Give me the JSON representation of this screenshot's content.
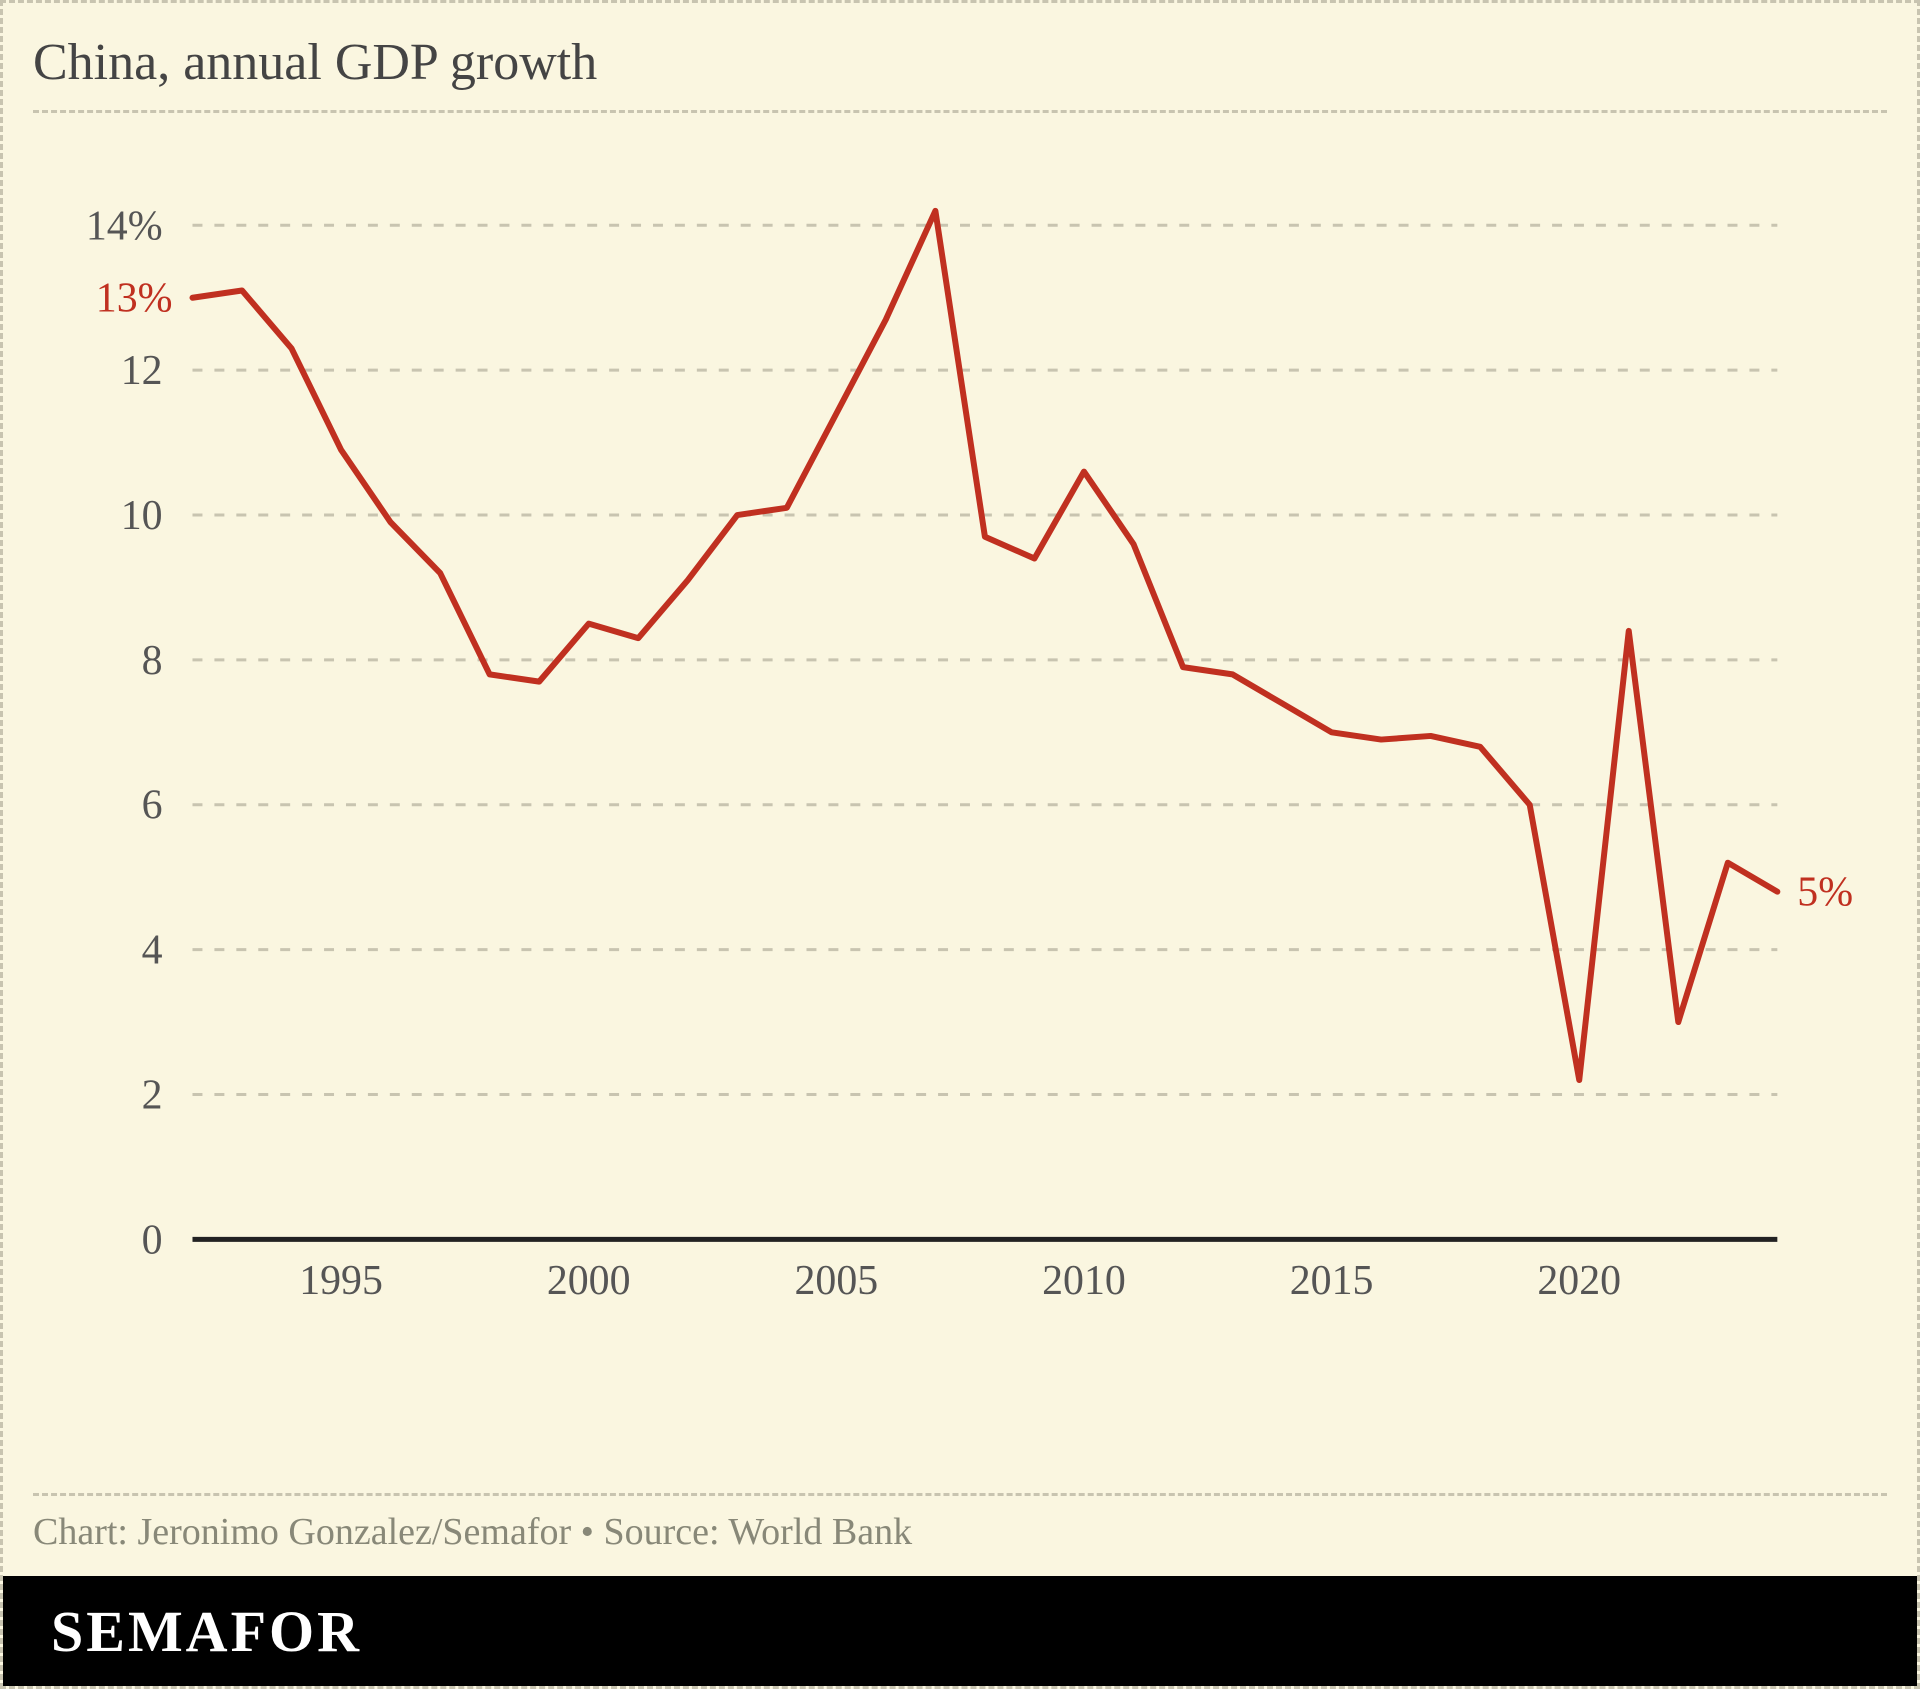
{
  "title": "China, annual GDP growth",
  "credit": "Chart: Jeronimo Gonzalez/Semafor • Source: World Bank",
  "brand": "SEMAFOR",
  "chart": {
    "type": "line",
    "background_color": "#faf6e0",
    "border_color": "#c8c4b0",
    "grid_color": "#c8c4b0",
    "axis_color": "#222222",
    "line_color": "#c03020",
    "line_width": 6,
    "tick_font_size": 42,
    "tick_color": "#555555",
    "callout_color": "#c03020",
    "callout_font_size": 42,
    "x_ticks": [
      1995,
      2000,
      2005,
      2010,
      2015,
      2020
    ],
    "y_ticks": [
      0,
      2,
      4,
      6,
      8,
      10,
      12,
      14
    ],
    "y_tick_labels": [
      "0",
      "2",
      "4",
      "6",
      "8",
      "10",
      "12",
      "14%"
    ],
    "xlim": [
      1992,
      2024
    ],
    "ylim": [
      0,
      15
    ],
    "start_label": "13%",
    "end_label": "5%",
    "series": [
      {
        "x": 1992,
        "y": 13.0
      },
      {
        "x": 1993,
        "y": 13.1
      },
      {
        "x": 1994,
        "y": 12.3
      },
      {
        "x": 1995,
        "y": 10.9
      },
      {
        "x": 1996,
        "y": 9.9
      },
      {
        "x": 1997,
        "y": 9.2
      },
      {
        "x": 1998,
        "y": 7.8
      },
      {
        "x": 1999,
        "y": 7.7
      },
      {
        "x": 2000,
        "y": 8.5
      },
      {
        "x": 2001,
        "y": 8.3
      },
      {
        "x": 2002,
        "y": 9.1
      },
      {
        "x": 2003,
        "y": 10.0
      },
      {
        "x": 2004,
        "y": 10.1
      },
      {
        "x": 2005,
        "y": 11.4
      },
      {
        "x": 2006,
        "y": 12.7
      },
      {
        "x": 2007,
        "y": 14.2
      },
      {
        "x": 2008,
        "y": 9.7
      },
      {
        "x": 2009,
        "y": 9.4
      },
      {
        "x": 2010,
        "y": 10.6
      },
      {
        "x": 2011,
        "y": 9.6
      },
      {
        "x": 2012,
        "y": 7.9
      },
      {
        "x": 2013,
        "y": 7.8
      },
      {
        "x": 2014,
        "y": 7.4
      },
      {
        "x": 2015,
        "y": 7.0
      },
      {
        "x": 2016,
        "y": 6.9
      },
      {
        "x": 2017,
        "y": 6.95
      },
      {
        "x": 2018,
        "y": 6.8
      },
      {
        "x": 2019,
        "y": 6.0
      },
      {
        "x": 2020,
        "y": 2.2
      },
      {
        "x": 2021,
        "y": 8.4
      },
      {
        "x": 2022,
        "y": 3.0
      },
      {
        "x": 2023,
        "y": 5.2
      },
      {
        "x": 2024,
        "y": 4.8
      }
    ]
  }
}
